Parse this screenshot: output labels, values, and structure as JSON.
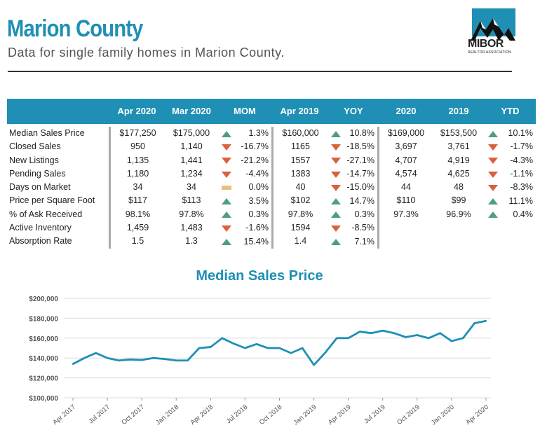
{
  "header": {
    "title": "Marion County",
    "subtitle": "Data for single family homes in Marion County.",
    "logo_word": "MIBOR",
    "logo_sub": "REALTOR ASSOCIATION"
  },
  "table": {
    "columns": [
      "",
      "Apr 2020",
      "Mar 2020",
      "MOM",
      "Apr 2019",
      "YOY",
      "2020",
      "2019",
      "YTD"
    ],
    "rows": [
      {
        "label": "Median Sales Price",
        "apr2020": "$177,250",
        "mar2020": "$175,000",
        "mom": "1.3%",
        "mom_dir": "up",
        "apr2019": "$160,000",
        "yoy": "10.8%",
        "yoy_dir": "up",
        "y2020": "$169,000",
        "y2019": "$153,500",
        "ytd": "10.1%",
        "ytd_dir": "up"
      },
      {
        "label": "Closed Sales",
        "apr2020": "950",
        "mar2020": "1,140",
        "mom": "-16.7%",
        "mom_dir": "down",
        "apr2019": "1165",
        "yoy": "-18.5%",
        "yoy_dir": "down",
        "y2020": "3,697",
        "y2019": "3,761",
        "ytd": "-1.7%",
        "ytd_dir": "down"
      },
      {
        "label": "New Listings",
        "apr2020": "1,135",
        "mar2020": "1,441",
        "mom": "-21.2%",
        "mom_dir": "down",
        "apr2019": "1557",
        "yoy": "-27.1%",
        "yoy_dir": "down",
        "y2020": "4,707",
        "y2019": "4,919",
        "ytd": "-4.3%",
        "ytd_dir": "down"
      },
      {
        "label": "Pending Sales",
        "apr2020": "1,180",
        "mar2020": "1,234",
        "mom": "-4.4%",
        "mom_dir": "down",
        "apr2019": "1383",
        "yoy": "-14.7%",
        "yoy_dir": "down",
        "y2020": "4,574",
        "y2019": "4,625",
        "ytd": "-1.1%",
        "ytd_dir": "down"
      },
      {
        "label": "Days on Market",
        "apr2020": "34",
        "mar2020": "34",
        "mom": "0.0%",
        "mom_dir": "flat",
        "apr2019": "40",
        "yoy": "-15.0%",
        "yoy_dir": "down",
        "y2020": "44",
        "y2019": "48",
        "ytd": "-8.3%",
        "ytd_dir": "down"
      },
      {
        "label": "Price per Square Foot",
        "apr2020": "$117",
        "mar2020": "$113",
        "mom": "3.5%",
        "mom_dir": "up",
        "apr2019": "$102",
        "yoy": "14.7%",
        "yoy_dir": "up",
        "y2020": "$110",
        "y2019": "$99",
        "ytd": "11.1%",
        "ytd_dir": "up"
      },
      {
        "label": "% of Ask Received",
        "apr2020": "98.1%",
        "mar2020": "97.8%",
        "mom": "0.3%",
        "mom_dir": "up",
        "apr2019": "97.8%",
        "yoy": "0.3%",
        "yoy_dir": "up",
        "y2020": "97.3%",
        "y2019": "96.9%",
        "ytd": "0.4%",
        "ytd_dir": "up"
      },
      {
        "label": "Active Inventory",
        "apr2020": "1,459",
        "mar2020": "1,483",
        "mom": "-1.6%",
        "mom_dir": "down",
        "apr2019": "1594",
        "yoy": "-8.5%",
        "yoy_dir": "down",
        "y2020": "",
        "y2019": "",
        "ytd": "",
        "ytd_dir": ""
      },
      {
        "label": "Absorption Rate",
        "apr2020": "1.5",
        "mar2020": "1.3",
        "mom": "15.4%",
        "mom_dir": "up",
        "apr2019": "1.4",
        "yoy": "7.1%",
        "yoy_dir": "up",
        "y2020": "",
        "y2019": "",
        "ytd": "",
        "ytd_dir": ""
      }
    ]
  },
  "colors": {
    "brand": "#1f8fb5",
    "up": "#4f9b8a",
    "down": "#d9613e",
    "flat": "#e4c07a"
  },
  "chart_data": {
    "type": "line",
    "title": "Median Sales Price",
    "x": [
      "Apr 2017",
      "May 2017",
      "Jun 2017",
      "Jul 2017",
      "Aug 2017",
      "Sep 2017",
      "Oct 2017",
      "Nov 2017",
      "Dec 2017",
      "Jan 2018",
      "Feb 2018",
      "Mar 2018",
      "Apr 2018",
      "May 2018",
      "Jun 2018",
      "Jul 2018",
      "Aug 2018",
      "Sep 2018",
      "Oct 2018",
      "Nov 2018",
      "Dec 2018",
      "Jan 2019",
      "Feb 2019",
      "Mar 2019",
      "Apr 2019",
      "May 2019",
      "Jun 2019",
      "Jul 2019",
      "Aug 2019",
      "Sep 2019",
      "Oct 2019",
      "Nov 2019",
      "Dec 2019",
      "Jan 2020",
      "Feb 2020",
      "Mar 2020",
      "Apr 2020"
    ],
    "tick_labels": [
      "Apr 2017",
      "Jul 2017",
      "Oct 2017",
      "Jan 2018",
      "Apr 2018",
      "Jul 2018",
      "Oct 2018",
      "Jan 2019",
      "Apr 2019",
      "Jul 2019",
      "Oct 2019",
      "Jan 2020",
      "Apr 2020"
    ],
    "values": [
      134000,
      140000,
      145000,
      140000,
      137500,
      138500,
      138000,
      140000,
      139000,
      137500,
      137500,
      150000,
      151000,
      160000,
      154500,
      150000,
      154000,
      150000,
      150000,
      145000,
      150000,
      133000,
      145500,
      160000,
      160000,
      166500,
      165000,
      167500,
      165000,
      161000,
      163000,
      160000,
      165000,
      157000,
      160000,
      175000,
      177250
    ],
    "yticks": [
      100000,
      120000,
      140000,
      160000,
      180000,
      200000
    ],
    "ytick_labels": [
      "$100,000",
      "$120,000",
      "$140,000",
      "$160,000",
      "$180,000",
      "$200,000"
    ],
    "ylim": [
      100000,
      200000
    ],
    "grid": true,
    "color": "#1f8fb5"
  }
}
